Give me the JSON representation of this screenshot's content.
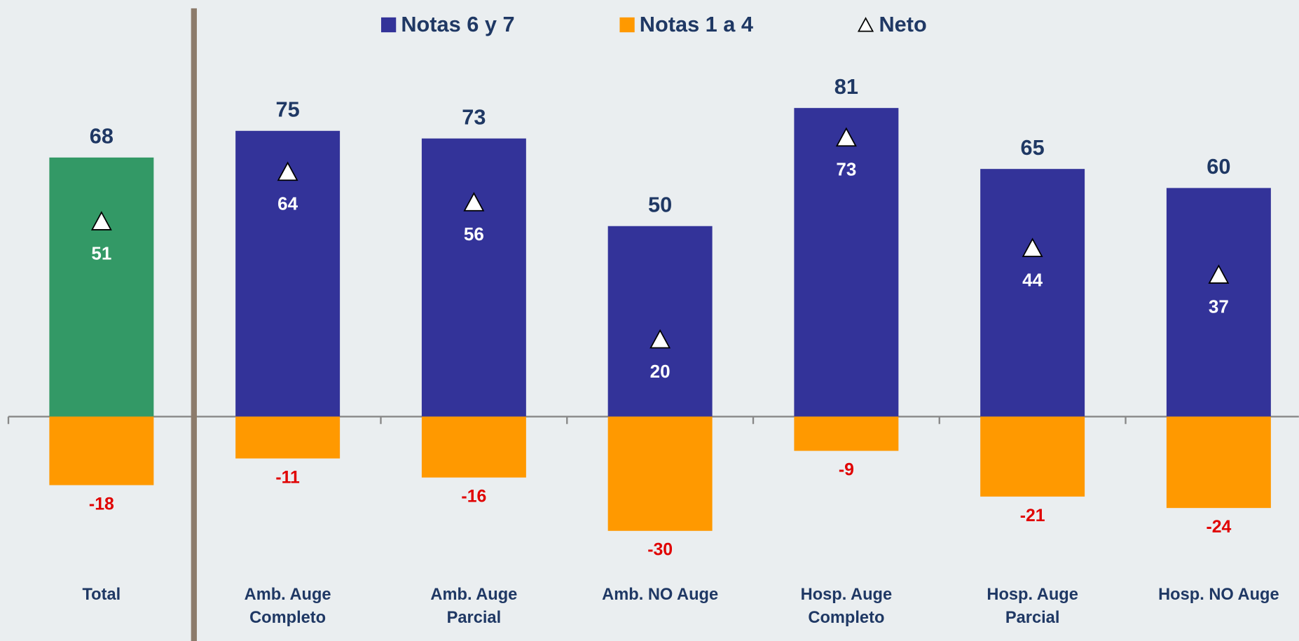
{
  "chart_data": {
    "type": "bar",
    "categories": [
      "Total",
      "Amb. Auge Completo",
      "Amb. Auge Parcial",
      "Amb. NO Auge",
      "Hosp. Auge Completo",
      "Hosp. Auge Parcial",
      "Hosp. NO Auge"
    ],
    "series": [
      {
        "name": "Notas 6 y 7",
        "color": "#333399",
        "colors": [
          "#339966",
          "#333399",
          "#333399",
          "#333399",
          "#333399",
          "#333399",
          "#333399"
        ],
        "values": [
          68,
          75,
          73,
          50,
          81,
          65,
          60
        ]
      },
      {
        "name": "Notas 1 a 4",
        "color": "#ff9900",
        "values": [
          -18,
          -11,
          -16,
          -30,
          -9,
          -21,
          -24
        ]
      },
      {
        "name": "Neto",
        "color": "#ffffff",
        "marker": "triangle",
        "values": [
          51,
          64,
          56,
          20,
          73,
          44,
          37
        ]
      }
    ],
    "ylim": [
      -50,
      95
    ],
    "legend": "top"
  }
}
